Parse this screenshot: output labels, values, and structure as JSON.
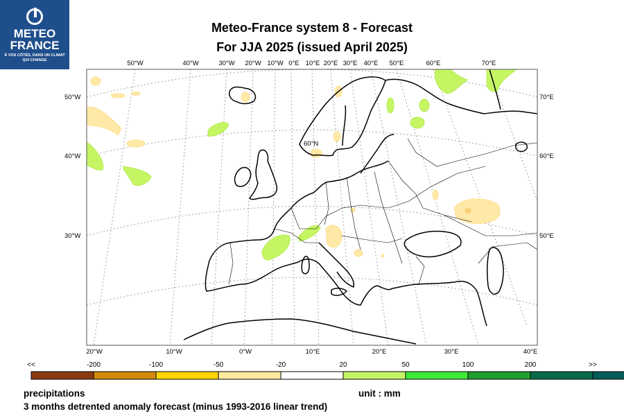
{
  "logo": {
    "line1": "METEO",
    "line2": "FRANCE",
    "tagline": "À VOS CÔTÉS, DANS UN CLIMAT QUI CHANGE"
  },
  "title": {
    "line1": "Meteo-France system 8  -  Forecast",
    "line2": "For JJA 2025      (issued April 2025)"
  },
  "map": {
    "top_lon_labels": [
      "50°W",
      "40°W",
      "30°W",
      "20°W",
      "10°W",
      "0°E",
      "10°E",
      "20°E",
      "30°E",
      "40°E",
      "50°E",
      "60°E",
      "70°E"
    ],
    "bottom_lon_labels": [
      "20°W",
      "10°W",
      "0°W",
      "10°E",
      "20°E",
      "30°E",
      "40°E"
    ],
    "left_lat_labels": [
      "50°W",
      "40°W",
      "30°W"
    ],
    "right_lat_labels": [
      "70°E",
      "60°E",
      "50°E"
    ],
    "inner_label": "60°N"
  },
  "colorbar": {
    "colors": [
      "#8b3a0f",
      "#d18a0d",
      "#ffd400",
      "#ffeaa0",
      "#ffffff",
      "#c2f566",
      "#40e83a",
      "#1f9e2e",
      "#0a6a48",
      "#055c58"
    ],
    "labels": [
      "<<",
      "-200",
      "-100",
      "-50",
      "-20",
      "20",
      "50",
      "100",
      "200",
      ">>"
    ]
  },
  "footer": {
    "variable": "precipitations",
    "unit": "unit : mm",
    "description": "3 months detrented anomaly forecast (minus 1993-2016 linear trend)"
  }
}
